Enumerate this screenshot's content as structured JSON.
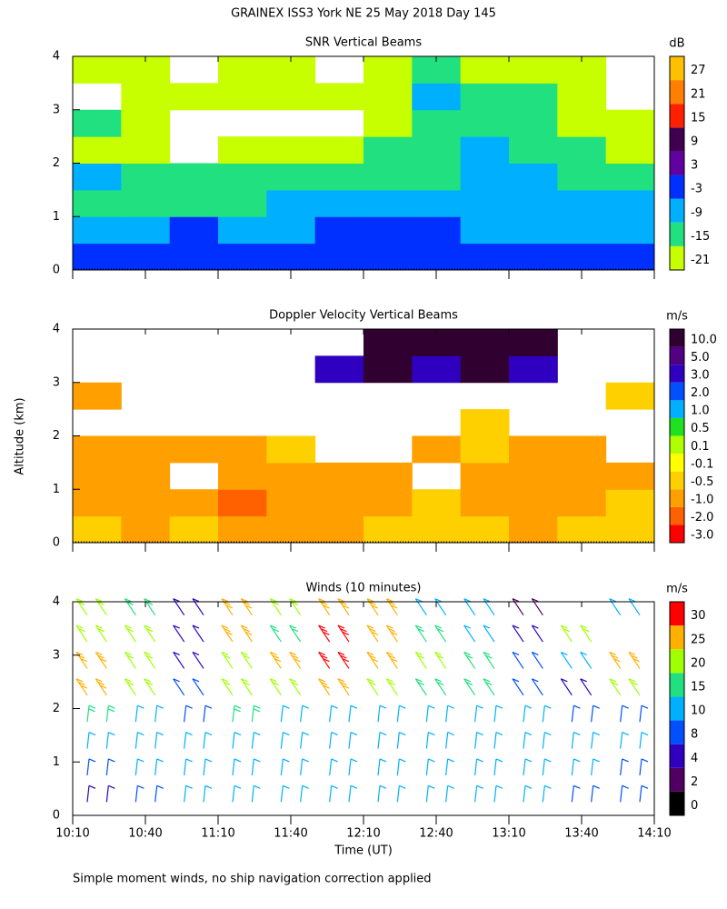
{
  "title": "GRAINEX ISS3 York NE  25 May 2018 Day 145",
  "footnote": "Simple moment winds, no ship navigation correction applied",
  "chart_data": [
    {
      "type": "contour",
      "title": "SNR Vertical Beams",
      "colorbar": {
        "unit": "dB",
        "levels": [
          -21,
          -15,
          -9,
          -3,
          3,
          9,
          15,
          21,
          27
        ],
        "colors": [
          "#c8ff00",
          "#20e080",
          "#00b0ff",
          "#0030ff",
          "#6000a0",
          "#400050",
          "#ff2000",
          "#ff8000",
          "#ffc000"
        ]
      },
      "ylim": [
        0,
        4
      ],
      "yticks": [
        0,
        1,
        2,
        3,
        4
      ],
      "z": [
        [
          0,
          -3,
          -3,
          0,
          -3,
          -3,
          -3,
          0,
          0,
          -3,
          -3,
          -3
        ],
        [
          -6,
          -9,
          -3,
          -9,
          -9,
          -3,
          -3,
          -3,
          -6,
          -9,
          -9,
          -9
        ],
        [
          -12,
          -15,
          -12,
          -12,
          -9,
          -9,
          -9,
          -9,
          -6,
          -9,
          -6,
          -9
        ],
        [
          -9,
          -12,
          -15,
          -12,
          -12,
          -15,
          -15,
          -12,
          -9,
          -6,
          -12,
          -12
        ],
        [
          -18,
          -18,
          null,
          -18,
          -18,
          -18,
          -15,
          -15,
          -9,
          -12,
          -15,
          -18
        ],
        [
          -15,
          -18,
          null,
          null,
          null,
          null,
          -18,
          -12,
          -15,
          -15,
          -18,
          -18
        ],
        [
          null,
          -18,
          -18,
          -20,
          -20,
          -20,
          -18,
          -9,
          -15,
          -12,
          -18,
          null
        ],
        [
          -20,
          -20,
          null,
          -20,
          -20,
          null,
          -20,
          -12,
          -20,
          -18,
          -20,
          null
        ]
      ]
    },
    {
      "type": "contour",
      "title": "Doppler Velocity Vertical Beams",
      "ylabel": "Altitude (km)",
      "colorbar": {
        "unit": "m/s",
        "levels": [
          {
            "value": -3,
            "label": "-3.0"
          },
          {
            "value": -2,
            "label": "-2.0"
          },
          {
            "value": -1,
            "label": "-1.0"
          },
          -0.5,
          -0.1,
          0.1,
          0.5,
          {
            "value": 1,
            "label": "1.0"
          },
          {
            "value": 2,
            "label": "2.0"
          },
          {
            "value": 3,
            "label": "3.0"
          },
          {
            "value": 5,
            "label": "5.0"
          },
          {
            "value": 10,
            "label": "10.0"
          }
        ],
        "colors": [
          "#ff0000",
          "#ff6000",
          "#ffa000",
          "#ffd000",
          "#ffff00",
          "#b0ff00",
          "#20e020",
          "#00b0ff",
          "#0050ff",
          "#3000c0",
          "#500080",
          "#300030"
        ]
      },
      "ylim": [
        0,
        4
      ],
      "yticks": [
        0,
        1,
        2,
        3,
        4
      ],
      "z": [
        [
          -0.3,
          -0.6,
          -0.3,
          -0.6,
          -0.6,
          -0.6,
          -0.3,
          -0.3,
          -0.3,
          -0.6,
          -0.3,
          -0.3
        ],
        [
          -0.6,
          -0.6,
          -0.6,
          -1.2,
          -0.6,
          -0.6,
          -0.6,
          -0.3,
          -0.6,
          -0.6,
          -0.6,
          -0.3
        ],
        [
          -0.6,
          -0.6,
          null,
          -0.6,
          -0.6,
          -0.6,
          -0.6,
          null,
          -0.6,
          -0.6,
          -0.6,
          -0.6
        ],
        [
          -0.6,
          -0.6,
          -0.6,
          -0.6,
          -0.3,
          null,
          null,
          -0.6,
          -0.3,
          -0.6,
          -0.6,
          null
        ],
        [
          null,
          null,
          null,
          null,
          null,
          null,
          null,
          null,
          -0.3,
          null,
          null,
          null
        ],
        [
          -0.6,
          null,
          null,
          null,
          null,
          null,
          null,
          null,
          null,
          null,
          null,
          -0.3
        ],
        [
          null,
          null,
          null,
          null,
          null,
          3.5,
          12,
          3.5,
          12,
          3.5,
          null,
          null
        ],
        [
          null,
          null,
          null,
          null,
          null,
          null,
          12,
          12,
          12,
          12,
          null,
          null
        ]
      ]
    },
    {
      "type": "barbs",
      "title": "Winds (10 minutes)",
      "xlabel": "Time (UT)",
      "colorbar": {
        "unit": "m/s",
        "levels": [
          0,
          2,
          4,
          8,
          10,
          15,
          20,
          25,
          30
        ],
        "colors": [
          "#000000",
          "#500060",
          "#3000c0",
          "#0050ff",
          "#00b0ff",
          "#20e080",
          "#a0ff00",
          "#ffb000",
          "#ff0000"
        ]
      },
      "xlim": [
        610,
        850
      ],
      "xticks": [
        {
          "value": 610,
          "label": "10:10"
        },
        {
          "value": 640,
          "label": "10:40"
        },
        {
          "value": 670,
          "label": "11:10"
        },
        {
          "value": 700,
          "label": "11:40"
        },
        {
          "value": 730,
          "label": "12:10"
        },
        {
          "value": 760,
          "label": "12:40"
        },
        {
          "value": 790,
          "label": "13:10"
        },
        {
          "value": 820,
          "label": "13:40"
        },
        {
          "value": 850,
          "label": "14:10"
        }
      ],
      "ylim": [
        0,
        4
      ],
      "yticks": [
        0,
        1,
        2,
        3,
        4
      ],
      "speed": [
        [
          5,
          9,
          12,
          12,
          11,
          12,
          11,
          12,
          12,
          10,
          9,
          9
        ],
        [
          8,
          12,
          14,
          14,
          13,
          13,
          12,
          13,
          12,
          11,
          10,
          9
        ],
        [
          10,
          13,
          14,
          14,
          14,
          14,
          13,
          13,
          12,
          11,
          10,
          10
        ],
        [
          18,
          13,
          9,
          16,
          14,
          12,
          14,
          12,
          12,
          10,
          8,
          8
        ],
        [
          26,
          22,
          8,
          20,
          22,
          28,
          22,
          18,
          18,
          8,
          6,
          22
        ],
        [
          28,
          22,
          6,
          22,
          28,
          30,
          26,
          20,
          18,
          8,
          14,
          26
        ],
        [
          24,
          20,
          6,
          28,
          18,
          30,
          28,
          18,
          12,
          4,
          20,
          null
        ],
        [
          22,
          18,
          4,
          26,
          20,
          28,
          28,
          14,
          14,
          2,
          null,
          10
        ]
      ]
    }
  ]
}
